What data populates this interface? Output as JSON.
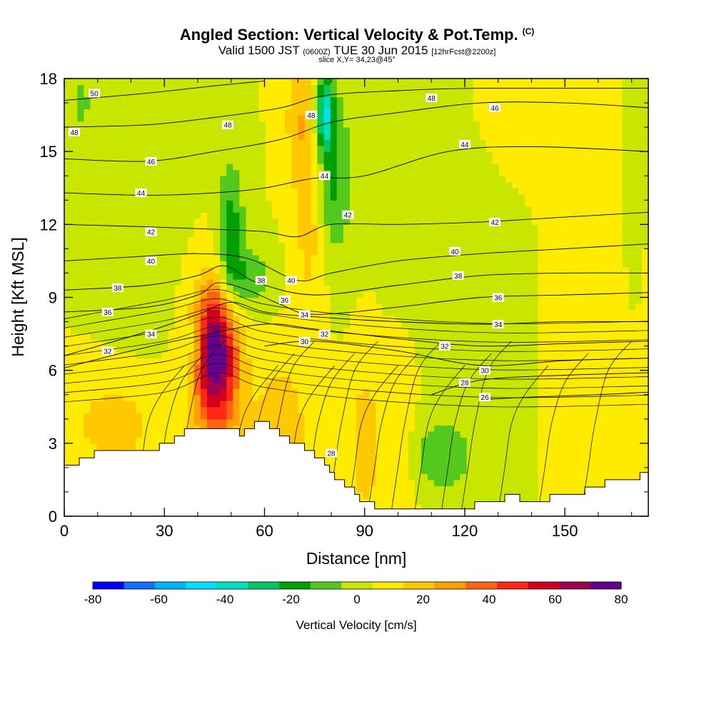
{
  "chart_data": {
    "type": "heatmap",
    "title": "Angled Section: Vertical Velocity & Pot.Temp.",
    "title_unit": "(C)",
    "subtitle": {
      "main": "Valid 1500 JST",
      "utc": "(0600Z)",
      "date": "TUE 30 Jun 2015",
      "forecast": "[12hrFcst@2200z]"
    },
    "slice_text": "slice X,Y= 34,23@45°",
    "xlabel": "Distance [nm]",
    "ylabel": "Height [Kft MSL]",
    "xlim": [
      0,
      175
    ],
    "ylim": [
      0,
      18
    ],
    "x_ticks": [
      "0",
      "30",
      "60",
      "90",
      "120",
      "150"
    ],
    "y_ticks": [
      "0",
      "3",
      "6",
      "9",
      "12",
      "15",
      "18"
    ],
    "colorbar": {
      "label": "Vertical Velocity [cm/s]",
      "tick_labels": [
        "-80",
        "-60",
        "-40",
        "-20",
        "0",
        "20",
        "40",
        "60",
        "80"
      ],
      "levels": [
        -80,
        -70,
        -60,
        -50,
        -40,
        -30,
        -20,
        -10,
        0,
        10,
        20,
        30,
        40,
        50,
        60,
        70,
        80
      ],
      "colors": [
        "#0000ff",
        "#0f72ff",
        "#00b4ff",
        "#00e1ff",
        "#00e0c0",
        "#00c864",
        "#00a000",
        "#55c81e",
        "#c8e600",
        "#ffeb00",
        "#ffc800",
        "#ffa000",
        "#ff6414",
        "#ff2814",
        "#d2001e",
        "#a00050",
        "#640090"
      ]
    },
    "terrain_kft": [
      [
        0,
        2.0
      ],
      [
        5,
        2.3
      ],
      [
        10,
        2.7
      ],
      [
        25,
        2.7
      ],
      [
        30,
        3.0
      ],
      [
        36,
        3.5
      ],
      [
        40,
        3.6
      ],
      [
        50,
        3.6
      ],
      [
        53,
        3.3
      ],
      [
        57,
        3.9
      ],
      [
        61,
        3.7
      ],
      [
        66,
        3.2
      ],
      [
        72,
        2.8
      ],
      [
        78,
        2.2
      ],
      [
        82,
        1.4
      ],
      [
        86,
        1.0
      ],
      [
        89,
        0.6
      ],
      [
        95,
        0.3
      ],
      [
        105,
        0.3
      ],
      [
        115,
        0.3
      ],
      [
        120,
        0.4
      ],
      [
        127,
        0.6
      ],
      [
        133,
        0.8
      ],
      [
        143,
        0.6
      ],
      [
        148,
        0.9
      ],
      [
        157,
        1.1
      ],
      [
        163,
        1.5
      ],
      [
        175,
        1.7
      ]
    ],
    "wv_background_cm_s": 5,
    "wv_features": [
      {
        "x": 45.5,
        "z": 6.8,
        "rx": 6.5,
        "rz": 2.7,
        "w": 80
      },
      {
        "x": 46,
        "z": 3.3,
        "rx": 9,
        "rz": 3.0,
        "w": 15
      },
      {
        "x": 15,
        "z": 3.8,
        "rx": 14,
        "rz": 2.0,
        "w": 15
      },
      {
        "x": 65,
        "z": 3.5,
        "rx": 8,
        "rz": 3.0,
        "w": 18
      },
      {
        "x": 74,
        "z": 13,
        "rx": 5,
        "rz": 4.5,
        "w": 20
      },
      {
        "x": 70,
        "z": 16.5,
        "rx": 4,
        "rz": 2.5,
        "w": 15
      },
      {
        "x": 90,
        "z": 3.0,
        "rx": 5,
        "rz": 3.5,
        "w": 15
      },
      {
        "x": 100,
        "z": 2.5,
        "rx": 5,
        "rz": 3.5,
        "w": 12
      },
      {
        "x": 138,
        "z": 16.5,
        "rx": 12,
        "rz": 2.5,
        "w": 10
      },
      {
        "x": 160,
        "z": 12,
        "rx": 14,
        "rz": 5,
        "w": 8
      },
      {
        "x": 50,
        "z": 11,
        "rx": 4,
        "rz": 3.5,
        "w": -28
      },
      {
        "x": 56,
        "z": 9.8,
        "rx": 7,
        "rz": 1.4,
        "w": -15
      },
      {
        "x": 78,
        "z": 16.6,
        "rx": 2.5,
        "rz": 1.5,
        "w": -45
      },
      {
        "x": 80,
        "z": 14.0,
        "rx": 6,
        "rz": 3.5,
        "w": -25
      },
      {
        "x": 113,
        "z": 2.5,
        "rx": 10,
        "rz": 1.6,
        "w": -18
      },
      {
        "x": 39,
        "z": 7.0,
        "rx": 3,
        "rz": 1.2,
        "w": -15
      },
      {
        "x": 120,
        "z": 12,
        "rx": 20,
        "rz": 5.0,
        "w": -5
      },
      {
        "x": 22,
        "z": 12,
        "rx": 12,
        "rz": 5.0,
        "w": -5
      },
      {
        "x": 5,
        "z": 17.0,
        "rx": 3,
        "rz": 1.0,
        "w": -15
      },
      {
        "x": 170,
        "z": 13.0,
        "rx": 4,
        "rz": 4.0,
        "w": -10
      }
    ],
    "theta_contours": [
      {
        "v": 26,
        "pts": [
          [
            125,
            4.8
          ],
          [
            140,
            4.9
          ],
          [
            160,
            5.0
          ],
          [
            175,
            5.1
          ]
        ]
      },
      {
        "v": 28,
        "pts": [
          [
            110,
            5.0
          ],
          [
            125,
            5.6
          ],
          [
            150,
            5.8
          ],
          [
            175,
            5.9
          ]
        ]
      },
      {
        "v": 30,
        "pts": [
          [
            60,
            7.0
          ],
          [
            75,
            7.2
          ],
          [
            100,
            6.8
          ],
          [
            125,
            6.2
          ],
          [
            150,
            6.4
          ],
          [
            175,
            6.5
          ]
        ]
      },
      {
        "v": 32,
        "pts": [
          [
            0,
            6.1
          ],
          [
            20,
            6.8
          ],
          [
            40,
            7.4
          ],
          [
            60,
            7.9
          ],
          [
            75,
            7.7
          ],
          [
            100,
            7.3
          ],
          [
            125,
            7.0
          ],
          [
            150,
            7.1
          ],
          [
            175,
            7.2
          ]
        ]
      },
      {
        "v": 34,
        "pts": [
          [
            0,
            6.6
          ],
          [
            25,
            7.6
          ],
          [
            40,
            8.3
          ],
          [
            50,
            8.8
          ],
          [
            60,
            8.4
          ],
          [
            75,
            8.2
          ],
          [
            100,
            8.0
          ],
          [
            125,
            7.9
          ],
          [
            150,
            8.0
          ],
          [
            175,
            8.0
          ]
        ]
      },
      {
        "v": 36,
        "pts": [
          [
            0,
            8.4
          ],
          [
            25,
            8.6
          ],
          [
            40,
            9.1
          ],
          [
            46,
            9.6
          ],
          [
            55,
            9.3
          ],
          [
            65,
            8.7
          ],
          [
            75,
            8.3
          ],
          [
            100,
            8.6
          ],
          [
            125,
            9.0
          ],
          [
            150,
            9.1
          ],
          [
            175,
            9.2
          ]
        ]
      },
      {
        "v": 38,
        "pts": [
          [
            0,
            9.3
          ],
          [
            25,
            9.5
          ],
          [
            40,
            9.9
          ],
          [
            48,
            10.3
          ],
          [
            58,
            9.6
          ],
          [
            75,
            9.1
          ],
          [
            100,
            9.5
          ],
          [
            125,
            9.9
          ],
          [
            150,
            10.0
          ],
          [
            175,
            10.0
          ]
        ]
      },
      {
        "v": 40,
        "pts": [
          [
            0,
            10.5
          ],
          [
            25,
            10.7
          ],
          [
            40,
            10.8
          ],
          [
            55,
            10.6
          ],
          [
            70,
            9.7
          ],
          [
            80,
            10.0
          ],
          [
            100,
            10.5
          ],
          [
            125,
            10.8
          ],
          [
            150,
            11.0
          ],
          [
            175,
            11.2
          ]
        ]
      },
      {
        "v": 42,
        "pts": [
          [
            0,
            12.0
          ],
          [
            25,
            11.9
          ],
          [
            45,
            11.8
          ],
          [
            60,
            11.7
          ],
          [
            70,
            11.5
          ],
          [
            80,
            12.0
          ],
          [
            100,
            12.0
          ],
          [
            125,
            12.1
          ],
          [
            150,
            12.3
          ],
          [
            175,
            12.5
          ]
        ]
      },
      {
        "v": 44,
        "pts": [
          [
            0,
            13.3
          ],
          [
            25,
            13.2
          ],
          [
            45,
            13.3
          ],
          [
            60,
            13.5
          ],
          [
            75,
            13.9
          ],
          [
            90,
            14.0
          ],
          [
            115,
            15.0
          ],
          [
            140,
            15.2
          ],
          [
            175,
            15.0
          ]
        ]
      },
      {
        "v": 46,
        "pts": [
          [
            0,
            14.7
          ],
          [
            25,
            14.6
          ],
          [
            45,
            15.0
          ],
          [
            65,
            15.5
          ],
          [
            80,
            16.2
          ],
          [
            100,
            16.6
          ],
          [
            125,
            17.0
          ],
          [
            150,
            17.0
          ],
          [
            175,
            16.8
          ]
        ]
      },
      {
        "v": 48,
        "pts": [
          [
            0,
            16.0
          ],
          [
            25,
            16.1
          ],
          [
            45,
            16.4
          ],
          [
            65,
            16.8
          ],
          [
            78,
            17.3
          ],
          [
            100,
            17.5
          ],
          [
            125,
            17.6
          ],
          [
            175,
            17.6
          ]
        ]
      },
      {
        "v": 50,
        "pts": [
          [
            0,
            17.1
          ],
          [
            25,
            17.4
          ],
          [
            45,
            17.7
          ],
          [
            60,
            17.9
          ]
        ]
      }
    ],
    "theta_labels": [
      {
        "t": "50",
        "x": 9,
        "z": 17.4
      },
      {
        "t": "48",
        "x": 3,
        "z": 15.8
      },
      {
        "t": "48",
        "x": 49,
        "z": 16.1
      },
      {
        "t": "48",
        "x": 74,
        "z": 16.5
      },
      {
        "t": "48",
        "x": 110,
        "z": 17.2
      },
      {
        "t": "46",
        "x": 26,
        "z": 14.6
      },
      {
        "t": "46",
        "x": 129,
        "z": 16.8
      },
      {
        "t": "44",
        "x": 23,
        "z": 13.3
      },
      {
        "t": "44",
        "x": 78,
        "z": 14.0
      },
      {
        "t": "44",
        "x": 120,
        "z": 15.3
      },
      {
        "t": "42",
        "x": 26,
        "z": 11.7
      },
      {
        "t": "42",
        "x": 85,
        "z": 12.4
      },
      {
        "t": "42",
        "x": 129,
        "z": 12.1
      },
      {
        "t": "40",
        "x": 26,
        "z": 10.5
      },
      {
        "t": "40",
        "x": 68,
        "z": 9.7
      },
      {
        "t": "40",
        "x": 117,
        "z": 10.9
      },
      {
        "t": "38",
        "x": 16,
        "z": 9.4
      },
      {
        "t": "38",
        "x": 59,
        "z": 9.7
      },
      {
        "t": "38",
        "x": 118,
        "z": 9.9
      },
      {
        "t": "36",
        "x": 13,
        "z": 8.4
      },
      {
        "t": "36",
        "x": 66,
        "z": 8.9
      },
      {
        "t": "36",
        "x": 130,
        "z": 9.0
      },
      {
        "t": "34",
        "x": 26,
        "z": 7.5
      },
      {
        "t": "34",
        "x": 72,
        "z": 8.3
      },
      {
        "t": "34",
        "x": 130,
        "z": 7.9
      },
      {
        "t": "32",
        "x": 13,
        "z": 6.8
      },
      {
        "t": "32",
        "x": 78,
        "z": 7.5
      },
      {
        "t": "32",
        "x": 114,
        "z": 7.0
      },
      {
        "t": "30",
        "x": 72,
        "z": 7.2
      },
      {
        "t": "30",
        "x": 126,
        "z": 6.0
      },
      {
        "t": "28",
        "x": 120,
        "z": 5.5
      },
      {
        "t": "28",
        "x": 80,
        "z": 2.6
      },
      {
        "t": "26",
        "x": 126,
        "z": 4.9
      }
    ],
    "mountain_isentropes_x": [
      24,
      30,
      36,
      52,
      57,
      63,
      69,
      75,
      82,
      88,
      94,
      101,
      108,
      116,
      122,
      133,
      145,
      158
    ]
  }
}
